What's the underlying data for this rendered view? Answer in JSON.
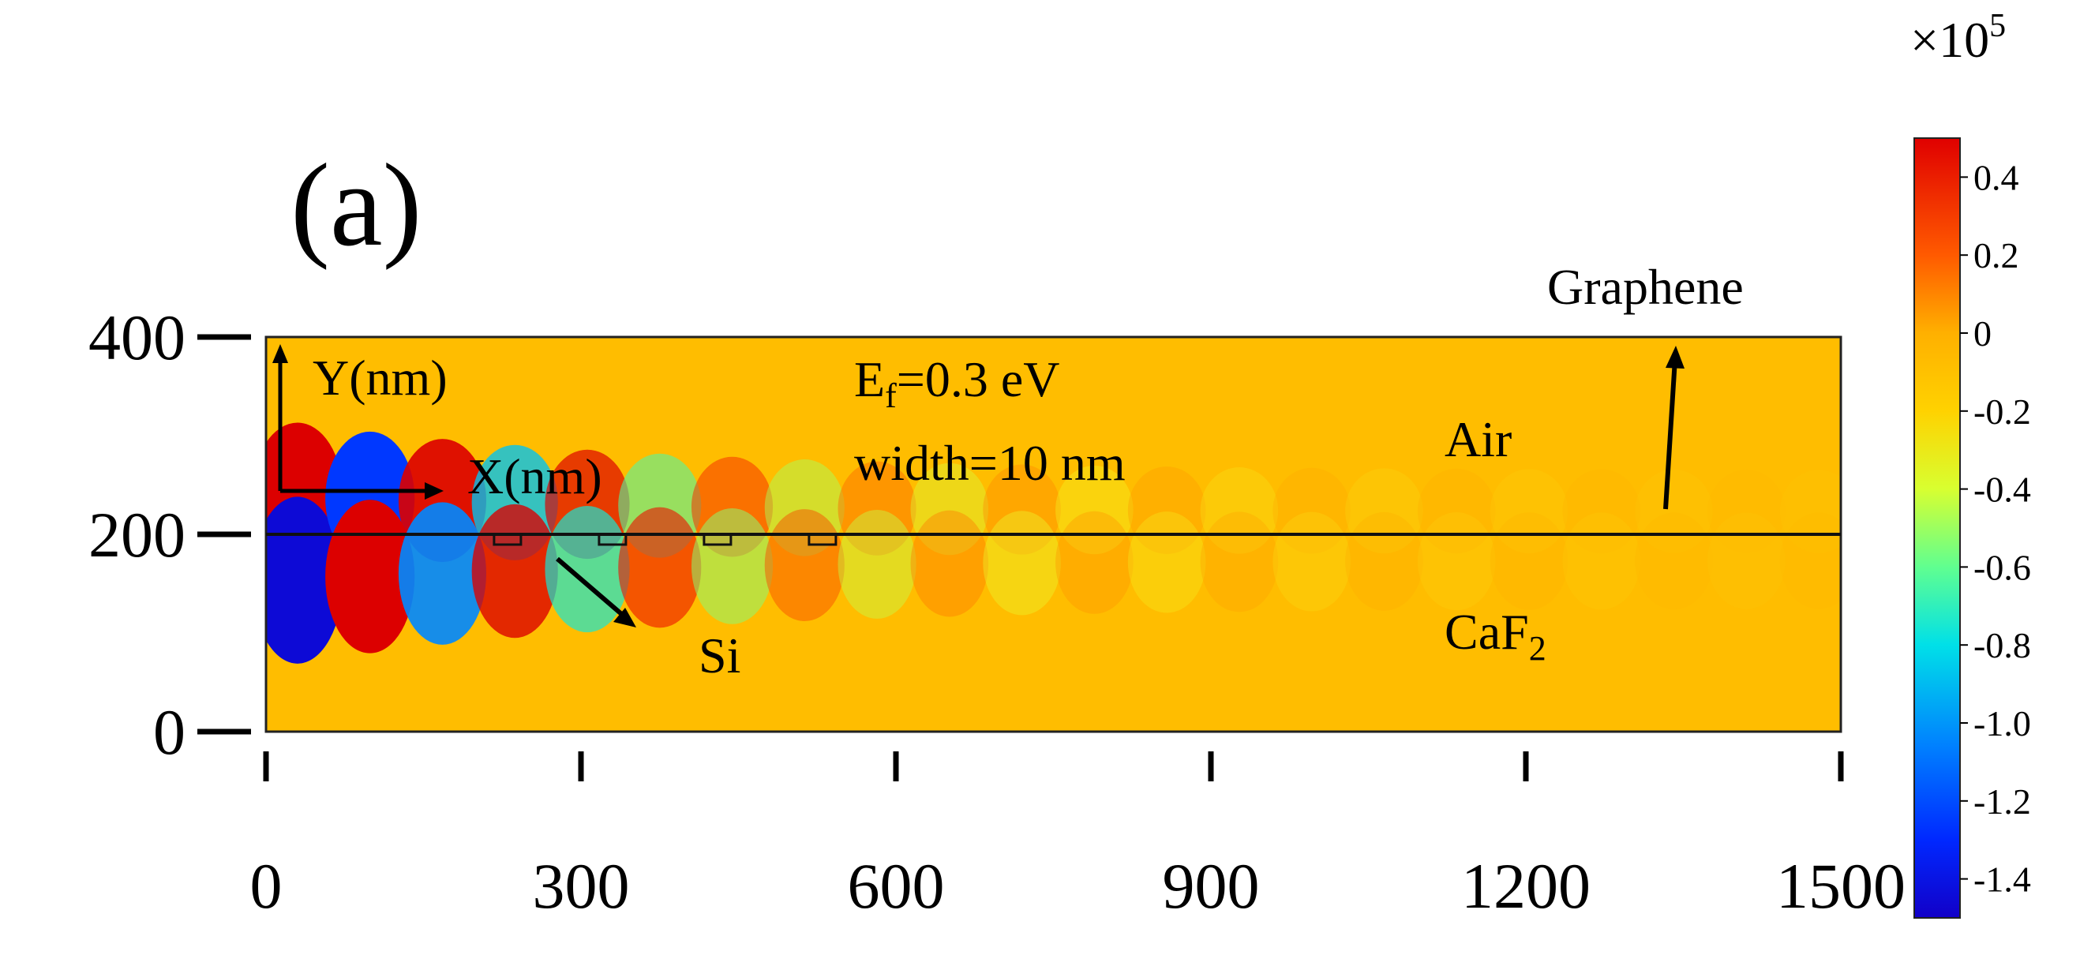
{
  "panel_label": "(a)",
  "chart_data": {
    "type": "heatmap",
    "title": "",
    "xlabel": "X(nm)",
    "ylabel": "Y(nm)",
    "xlim": [
      0,
      1500
    ],
    "ylim": [
      0,
      400
    ],
    "x_ticks": [
      {
        "value": 0,
        "label": "0"
      },
      {
        "value": 300,
        "label": "300"
      },
      {
        "value": 600,
        "label": "600"
      },
      {
        "value": 900,
        "label": "900"
      },
      {
        "value": 1200,
        "label": "1200"
      },
      {
        "value": 1500,
        "label": "1500"
      }
    ],
    "y_ticks": [
      {
        "value": 0,
        "label": "0"
      },
      {
        "value": 200,
        "label": "200"
      },
      {
        "value": 400,
        "label": "400"
      }
    ],
    "colorbar": {
      "exponent_label": "×10",
      "exponent_power": "5",
      "range": [
        -1.5,
        0.5
      ],
      "ticks": [
        "0.4",
        "0.2",
        "0",
        "-0.2",
        "-0.4",
        "-0.6",
        "-0.8",
        "-1.0",
        "-1.2",
        "-1.4"
      ],
      "tick_values": [
        0.4,
        0.2,
        0,
        -0.2,
        -0.4,
        -0.6,
        -0.8,
        -1.0,
        -1.2,
        -1.4
      ]
    },
    "interface_y": 200,
    "field": {
      "description_free": true,
      "period_nm": 120,
      "decay_length_nm": 330,
      "lobes": [
        {
          "x": 30,
          "y_air": "positive",
          "y_sub": "negative"
        },
        {
          "x": 150,
          "y_air": "negative",
          "y_sub": "positive"
        }
      ]
    },
    "si_blocks_x": [
      230,
      330,
      430,
      530
    ],
    "annotations": {
      "ef_main": "E",
      "ef_sub": "f",
      "ef_value": "=0.3 eV",
      "width": "width=10 nm",
      "air": "Air",
      "substrate_main": "CaF",
      "substrate_sub": "2",
      "graphene": "Graphene",
      "si": "Si"
    }
  }
}
